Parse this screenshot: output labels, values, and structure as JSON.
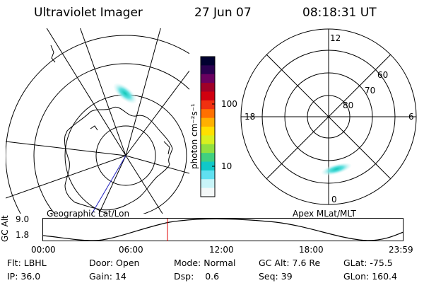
{
  "header": {
    "instrument": "Ultraviolet Imager",
    "date": "27 Jun 07",
    "time": "08:18:31 UT"
  },
  "left_map": {
    "label": "Geographic Lat/Lon"
  },
  "right_map": {
    "label": "Apex MLat/MLT",
    "mlt_labels": {
      "top": "12",
      "bottom": "0",
      "left": "18",
      "right": "6"
    },
    "lat_labels": [
      "60",
      "70",
      "80"
    ]
  },
  "colorbar": {
    "unit_label": "photon cm⁻²s⁻¹",
    "scale": "log",
    "tick_labels": [
      "100",
      "10"
    ],
    "colors": [
      "#000030",
      "#2a0050",
      "#6a0060",
      "#a00028",
      "#d00010",
      "#f03010",
      "#ff7000",
      "#ffb000",
      "#ffe000",
      "#d8f020",
      "#90e040",
      "#40d080",
      "#10c8c8",
      "#60e0f0",
      "#c8f4f8",
      "#f4f8f8"
    ]
  },
  "altitude_panel": {
    "axis_label": "GC Alt",
    "y_ticks": [
      "9.0",
      "1.8"
    ],
    "x_ticks": [
      "00:00",
      "06:00",
      "12:00",
      "18:00",
      "23:59"
    ],
    "current_time_marker_color": "#e00000"
  },
  "status": {
    "flt_label": "Flt:",
    "flt_value": "LBHL",
    "ip_label": "IP:",
    "ip_value": "36.0",
    "door_label": "Door:",
    "door_value": "Open",
    "gain_label": "Gain:",
    "gain_value": "14",
    "mode_label": "Mode:",
    "mode_value": "Normal",
    "dsp_label": "Dsp:",
    "dsp_value": "0.6",
    "gcalt_label": "GC Alt:",
    "gcalt_value": "7.6 Re",
    "seq_label": "Seq:",
    "seq_value": "39",
    "glat_label": "GLat:",
    "glat_value": "-75.5",
    "glon_label": "GLon:",
    "glon_value": "160.4"
  }
}
